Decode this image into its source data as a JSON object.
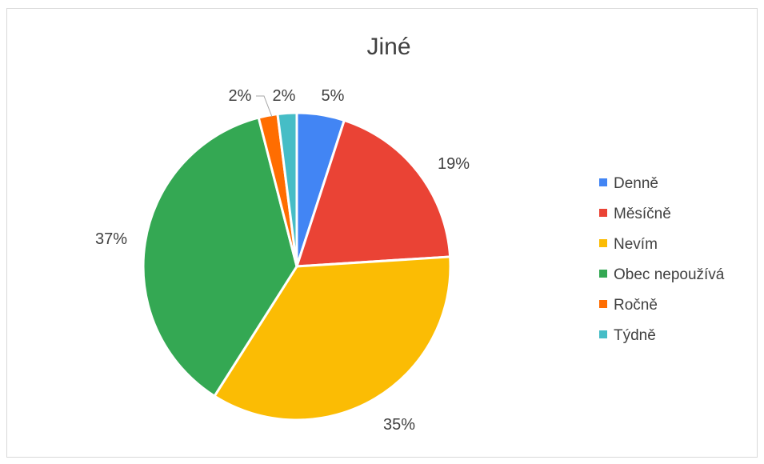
{
  "chart_data": {
    "type": "pie",
    "title": "Jiné",
    "legend_position": "right",
    "slices": [
      {
        "name": "Denně",
        "value": 5,
        "label": "5%",
        "color": "#4285f4"
      },
      {
        "name": "Měsíčně",
        "value": 19,
        "label": "19%",
        "color": "#ea4335"
      },
      {
        "name": "Nevím",
        "value": 35,
        "label": "35%",
        "color": "#fbbc04"
      },
      {
        "name": "Obec nepoužívá",
        "value": 37,
        "label": "37%",
        "color": "#34a853"
      },
      {
        "name": "Ročně",
        "value": 2,
        "label": "2%",
        "color": "#ff6d01"
      },
      {
        "name": "Týdně",
        "value": 2,
        "label": "2%",
        "color": "#46bdc6"
      }
    ]
  }
}
